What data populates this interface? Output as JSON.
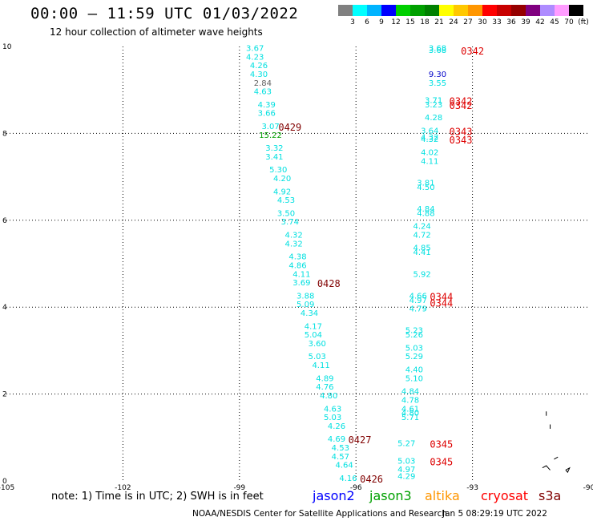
{
  "header": {
    "title": "00:00 – 11:59 UTC 01/03/2022",
    "subtitle": "12 hour collection of altimeter wave heights"
  },
  "colorbar": {
    "colors": [
      "#808080",
      "#00ffff",
      "#00b4ff",
      "#0000ff",
      "#00d000",
      "#00a000",
      "#008000",
      "#ffff00",
      "#ffc800",
      "#ff9600",
      "#ff0000",
      "#c80000",
      "#960000",
      "#800080",
      "#ae8cff",
      "#ff9cff",
      "#000000"
    ],
    "labels": [
      "3",
      "6",
      "9",
      "12",
      "15",
      "18",
      "21",
      "24",
      "27",
      "30",
      "33",
      "36",
      "39",
      "42",
      "45",
      "70",
      "(ft)"
    ]
  },
  "footer": {
    "note": "note:  1) Time is in UTC;  2) SWH is in feet",
    "missions": [
      {
        "name": "jason2",
        "color": "#0000ff"
      },
      {
        "name": "jason3",
        "color": "#00a000"
      },
      {
        "name": "altika",
        "color": "#ff9600"
      },
      {
        "name": "cryosat",
        "color": "#ff0000"
      },
      {
        "name": "s3a",
        "color": "#800000"
      }
    ],
    "credit": "NOAA/NESDIS Center for Satellite Applications and Research",
    "timestamp": "Jan  5 08:29:19 UTC 2022"
  },
  "chart_data": {
    "type": "scatter",
    "title": "00:00 – 11:59 UTC 01/03/2022",
    "subtitle": "12 hour collection of altimeter wave heights",
    "xlim": [
      -105,
      -90
    ],
    "ylim": [
      0,
      10
    ],
    "xticks": [
      "-105",
      "-102",
      "-99",
      "-96",
      "-93",
      "-90"
    ],
    "yticks": [
      "0",
      "2",
      "4",
      "6",
      "8",
      "10"
    ],
    "grid": true,
    "series": [
      {
        "name": "s3a",
        "color": "#00e0e0",
        "points": [
          {
            "x": -98.6,
            "y": 9.9,
            "v": "3.67"
          },
          {
            "x": -98.6,
            "y": 9.7,
            "v": "4.23"
          },
          {
            "x": -98.5,
            "y": 9.5,
            "v": "4.26"
          },
          {
            "x": -98.5,
            "y": 9.3,
            "v": "4.30"
          },
          {
            "x": -98.4,
            "y": 9.1,
            "v": "2.84",
            "c": "#606060"
          },
          {
            "x": -98.4,
            "y": 8.9,
            "v": "4.63"
          },
          {
            "x": -98.3,
            "y": 8.6,
            "v": "4.39"
          },
          {
            "x": -98.3,
            "y": 8.4,
            "v": "3.66"
          },
          {
            "x": -98.2,
            "y": 8.1,
            "v": "3.07"
          },
          {
            "x": -98.2,
            "y": 7.9,
            "v": "15.22",
            "c": "#00a000"
          },
          {
            "x": -98.1,
            "y": 7.6,
            "v": "3.32"
          },
          {
            "x": -98.1,
            "y": 7.4,
            "v": "3.41"
          },
          {
            "x": -98.0,
            "y": 7.1,
            "v": "5.30"
          },
          {
            "x": -97.9,
            "y": 6.9,
            "v": "4.20"
          },
          {
            "x": -97.9,
            "y": 6.6,
            "v": "4.92"
          },
          {
            "x": -97.8,
            "y": 6.4,
            "v": "4.53"
          },
          {
            "x": -97.8,
            "y": 6.1,
            "v": "3.50"
          },
          {
            "x": -97.7,
            "y": 5.9,
            "v": "3.74"
          },
          {
            "x": -97.6,
            "y": 5.6,
            "v": "4.32"
          },
          {
            "x": -97.6,
            "y": 5.4,
            "v": "4.32"
          },
          {
            "x": -97.5,
            "y": 5.1,
            "v": "4.38"
          },
          {
            "x": -97.5,
            "y": 4.9,
            "v": "4.86"
          },
          {
            "x": -97.4,
            "y": 4.7,
            "v": "4.11"
          },
          {
            "x": -97.4,
            "y": 4.5,
            "v": "3.69"
          },
          {
            "x": -97.3,
            "y": 4.2,
            "v": "3.88"
          },
          {
            "x": -97.3,
            "y": 4.0,
            "v": "5.09"
          },
          {
            "x": -97.2,
            "y": 3.8,
            "v": "4.34"
          },
          {
            "x": -97.1,
            "y": 3.5,
            "v": "4.17"
          },
          {
            "x": -97.1,
            "y": 3.3,
            "v": "5.04"
          },
          {
            "x": -97.0,
            "y": 3.1,
            "v": "3.60"
          },
          {
            "x": -97.0,
            "y": 2.8,
            "v": "5.03"
          },
          {
            "x": -96.9,
            "y": 2.6,
            "v": "4.11"
          },
          {
            "x": -96.8,
            "y": 2.3,
            "v": "4.89"
          },
          {
            "x": -96.8,
            "y": 2.1,
            "v": "4.76"
          },
          {
            "x": -96.7,
            "y": 1.9,
            "v": "4.80"
          },
          {
            "x": -96.6,
            "y": 1.6,
            "v": "4.63"
          },
          {
            "x": -96.6,
            "y": 1.4,
            "v": "5.03"
          },
          {
            "x": -96.5,
            "y": 1.2,
            "v": "4.26"
          },
          {
            "x": -96.5,
            "y": 0.9,
            "v": "4.69"
          },
          {
            "x": -96.4,
            "y": 0.7,
            "v": "4.53"
          },
          {
            "x": -96.4,
            "y": 0.5,
            "v": "4.57"
          },
          {
            "x": -96.3,
            "y": 0.3,
            "v": "4.64"
          },
          {
            "x": -96.2,
            "y": 0.0,
            "v": "4.16"
          }
        ],
        "time_labels": [
          {
            "x": -97.7,
            "y": 8.1,
            "t": "0429"
          },
          {
            "x": -96.7,
            "y": 4.5,
            "t": "0428"
          },
          {
            "x": -95.9,
            "y": 0.9,
            "t": "0427"
          },
          {
            "x": -95.6,
            "y": 0.0,
            "t": "0426"
          }
        ]
      },
      {
        "name": "cryosat",
        "color": "#00e0e0",
        "points": [
          {
            "x": -93.9,
            "y": 9.9,
            "v": "3.68"
          },
          {
            "x": -93.9,
            "y": 9.85,
            "v": "3.68"
          },
          {
            "x": -93.9,
            "y": 9.3,
            "v": "9.30",
            "c": "#0000c8"
          },
          {
            "x": -93.9,
            "y": 9.1,
            "v": "3.55"
          },
          {
            "x": -94.0,
            "y": 8.7,
            "v": "3.71"
          },
          {
            "x": -94.0,
            "y": 8.6,
            "v": "3.23"
          },
          {
            "x": -94.0,
            "y": 8.3,
            "v": "4.28"
          },
          {
            "x": -94.1,
            "y": 8.0,
            "v": "3.64"
          },
          {
            "x": -94.1,
            "y": 7.85,
            "v": "4.32"
          },
          {
            "x": -94.1,
            "y": 7.8,
            "v": "4.32"
          },
          {
            "x": -94.1,
            "y": 7.5,
            "v": "4.02"
          },
          {
            "x": -94.1,
            "y": 7.3,
            "v": "4.11"
          },
          {
            "x": -94.2,
            "y": 6.8,
            "v": "3.81"
          },
          {
            "x": -94.2,
            "y": 6.7,
            "v": "4.50"
          },
          {
            "x": -94.2,
            "y": 6.2,
            "v": "4.84"
          },
          {
            "x": -94.2,
            "y": 6.1,
            "v": "4.88"
          },
          {
            "x": -94.3,
            "y": 5.8,
            "v": "4.24"
          },
          {
            "x": -94.3,
            "y": 5.6,
            "v": "4.72"
          },
          {
            "x": -94.3,
            "y": 5.3,
            "v": "4.85"
          },
          {
            "x": -94.3,
            "y": 5.2,
            "v": "4.41"
          },
          {
            "x": -94.3,
            "y": 4.7,
            "v": "5.92"
          },
          {
            "x": -94.4,
            "y": 4.2,
            "v": "4.66"
          },
          {
            "x": -94.4,
            "y": 4.1,
            "v": "4.97"
          },
          {
            "x": -94.4,
            "y": 3.9,
            "v": "4.79"
          },
          {
            "x": -94.5,
            "y": 3.4,
            "v": "5.23"
          },
          {
            "x": -94.5,
            "y": 3.3,
            "v": "5.26"
          },
          {
            "x": -94.5,
            "y": 3.0,
            "v": "5.03"
          },
          {
            "x": -94.5,
            "y": 2.8,
            "v": "5.29"
          },
          {
            "x": -94.5,
            "y": 2.5,
            "v": "4.40"
          },
          {
            "x": -94.5,
            "y": 2.3,
            "v": "5.10"
          },
          {
            "x": -94.6,
            "y": 2.0,
            "v": "4.84"
          },
          {
            "x": -94.6,
            "y": 1.8,
            "v": "4.78"
          },
          {
            "x": -94.6,
            "y": 1.6,
            "v": "4.61"
          },
          {
            "x": -94.6,
            "y": 1.5,
            "v": "4.80"
          },
          {
            "x": -94.6,
            "y": 1.4,
            "v": "5.71"
          },
          {
            "x": -94.7,
            "y": 0.8,
            "v": "5.27"
          },
          {
            "x": -94.7,
            "y": 0.4,
            "v": "5.03"
          },
          {
            "x": -94.7,
            "y": 0.2,
            "v": "4.97"
          },
          {
            "x": -94.7,
            "y": 0.05,
            "v": "4.29"
          }
        ],
        "time_labels": [
          {
            "x": -93.0,
            "y": 9.85,
            "t": "0342"
          },
          {
            "x": -93.3,
            "y": 8.7,
            "t": "0342"
          },
          {
            "x": -93.3,
            "y": 8.6,
            "t": "0342"
          },
          {
            "x": -93.3,
            "y": 8.0,
            "t": "0343"
          },
          {
            "x": -93.3,
            "y": 7.8,
            "t": "0343"
          },
          {
            "x": -93.8,
            "y": 4.2,
            "t": "0344"
          },
          {
            "x": -93.8,
            "y": 4.05,
            "t": "0344"
          },
          {
            "x": -93.8,
            "y": 0.8,
            "t": "0345"
          },
          {
            "x": -93.8,
            "y": 0.4,
            "t": "0345"
          }
        ]
      }
    ]
  }
}
